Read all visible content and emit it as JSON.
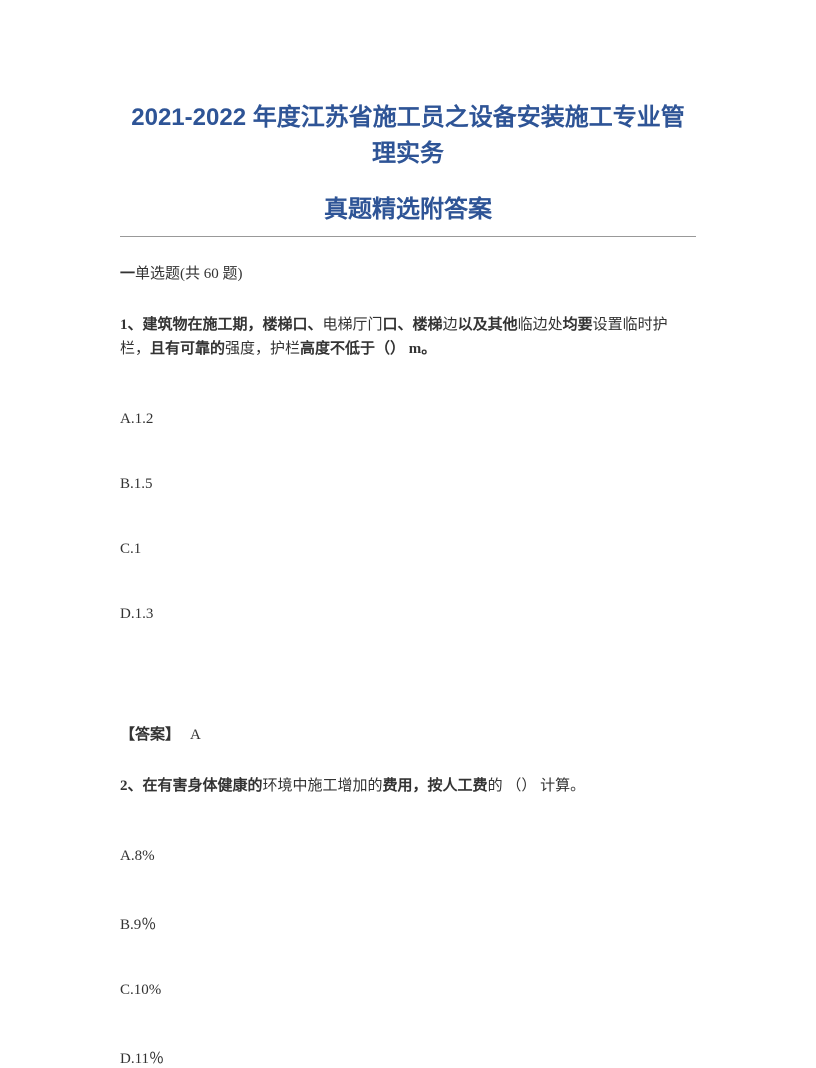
{
  "title": {
    "line1": "2021-2022 年度江苏省施工员之设备安装施工专业管理实务",
    "line2": "真题精选附答案"
  },
  "section": {
    "prefix": "一",
    "type": "单选题",
    "count_text": "(共 60 题)"
  },
  "q1": {
    "number": "1、",
    "text_part1": "建筑物在施工期，楼梯口、",
    "text_part2": "电梯厅门",
    "text_part3": "口、楼梯",
    "text_part4": "边",
    "text_part5": "以及其他",
    "text_part6": "临边处",
    "text_part7": "均要",
    "text_part8": "设置临时护栏，",
    "text_part9": "且有可靠的",
    "text_part10": "强度，护栏",
    "text_part11": "高度不低于（） m。",
    "options": {
      "a": "A.1.2",
      "b": "B.1.5",
      "c": "C.1",
      "d": "D.1.3"
    },
    "answer_label": "【答案】",
    "answer_value": "A"
  },
  "q2": {
    "number": "2、",
    "text_part1": "在有害身体健康的",
    "text_part2": "环境中施工增加的",
    "text_part3": "费用，按人工费",
    "text_part4": "的 （） 计算。",
    "options": {
      "a": "A.8%",
      "b": "B.9％",
      "c": "C.10%",
      "d": "D.11％"
    }
  }
}
